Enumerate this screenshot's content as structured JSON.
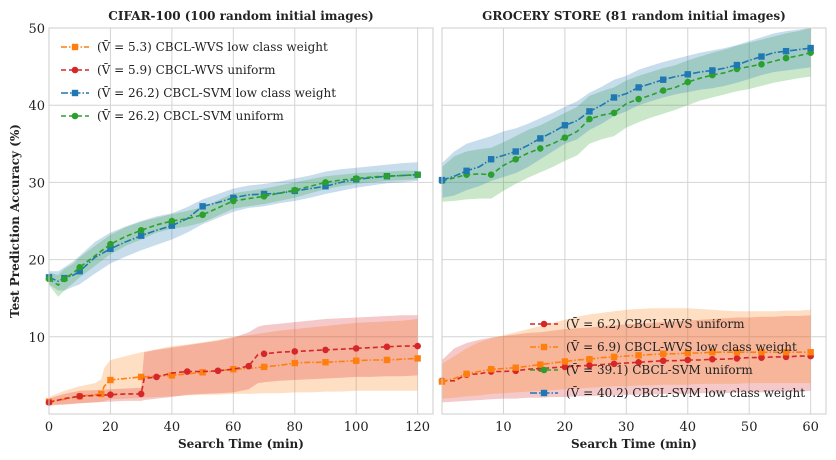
{
  "chart_data": [
    {
      "type": "line",
      "title": "CIFAR-100 (100 random initial images)",
      "xlabel": "Search Time (min)",
      "ylabel": "Test Prediction Accuracy (%)",
      "xlim": [
        0,
        125
      ],
      "ylim": [
        0,
        50
      ],
      "xticks": [
        0,
        20,
        40,
        60,
        80,
        100,
        120
      ],
      "yticks": [
        10,
        20,
        30,
        40,
        50
      ],
      "grid": true,
      "legend_position": "top-left",
      "series": [
        {
          "name": "(V̄ =  5.3) CBCL-WVS low class weight",
          "color": "#ff7f0e",
          "marker": "square",
          "dash": "6,2,1.5,2",
          "x": [
            0,
            5,
            10,
            15,
            17,
            18,
            20,
            25,
            30,
            35,
            40,
            45,
            50,
            55,
            60,
            65,
            70,
            75,
            80,
            85,
            90,
            95,
            100,
            105,
            110,
            115,
            120
          ],
          "y": [
            1.6,
            1.9,
            2.3,
            2.5,
            2.6,
            3.6,
            4.4,
            4.6,
            4.8,
            4.9,
            5.0,
            5.2,
            5.4,
            5.6,
            5.8,
            5.9,
            6.1,
            6.3,
            6.6,
            6.7,
            6.7,
            6.8,
            6.9,
            7.0,
            7.0,
            7.1,
            7.2
          ],
          "band_upper": [
            2.2,
            3.0,
            3.6,
            4.0,
            4.5,
            6.0,
            7.0,
            7.5,
            8.0,
            8.4,
            8.8,
            9.0,
            9.3,
            9.6,
            10.0,
            10.2,
            10.5,
            10.8,
            11.0,
            11.2,
            11.4,
            11.6,
            11.8,
            11.9,
            12.0,
            12.1,
            12.3
          ],
          "band_lower": [
            1.2,
            1.3,
            1.4,
            1.5,
            1.6,
            1.7,
            1.9,
            2.0,
            2.1,
            2.2,
            2.3,
            2.4,
            2.5,
            2.5,
            2.6,
            2.6,
            2.7,
            2.7,
            2.8,
            2.8,
            2.9,
            2.9,
            3.0,
            3.0,
            3.0,
            3.0,
            3.0
          ]
        },
        {
          "name": "(V̄ =  5.9) CBCL-WVS uniform",
          "color": "#d62728",
          "marker": "circle",
          "dash": "5,3",
          "x": [
            0,
            5,
            10,
            15,
            20,
            25,
            30,
            31,
            35,
            40,
            45,
            50,
            55,
            60,
            65,
            68,
            70,
            75,
            80,
            85,
            90,
            95,
            100,
            105,
            110,
            115,
            120
          ],
          "y": [
            1.5,
            2.0,
            2.3,
            2.4,
            2.5,
            2.6,
            2.6,
            4.6,
            4.8,
            5.3,
            5.5,
            5.5,
            5.6,
            5.8,
            6.2,
            7.7,
            7.8,
            8.0,
            8.1,
            8.2,
            8.3,
            8.4,
            8.5,
            8.6,
            8.7,
            8.8,
            8.8
          ],
          "band_upper": [
            2.0,
            2.6,
            3.0,
            3.1,
            3.2,
            3.3,
            3.4,
            8.0,
            8.3,
            8.6,
            8.9,
            9.2,
            9.5,
            9.9,
            10.6,
            11.3,
            11.5,
            11.7,
            11.9,
            12.1,
            12.3,
            12.4,
            12.5,
            12.6,
            12.7,
            12.8,
            12.8
          ],
          "band_lower": [
            1.1,
            1.2,
            1.4,
            1.5,
            1.6,
            1.7,
            1.7,
            1.8,
            2.0,
            2.2,
            2.5,
            2.6,
            2.7,
            2.8,
            3.2,
            4.0,
            4.1,
            4.3,
            4.4,
            4.5,
            4.6,
            4.7,
            4.8,
            4.8,
            4.9,
            4.9,
            5.0
          ]
        },
        {
          "name": "(V̄ =  26.2) CBCL-SVM low class weight",
          "color": "#1f77b4",
          "marker": "square",
          "dash": "7,2,1.5,2",
          "x": [
            0,
            3,
            5,
            8,
            10,
            15,
            20,
            25,
            30,
            35,
            40,
            45,
            50,
            55,
            60,
            65,
            70,
            75,
            80,
            85,
            90,
            95,
            100,
            105,
            110,
            115,
            120
          ],
          "y": [
            17.7,
            17.2,
            17.6,
            18.0,
            18.5,
            20.3,
            21.4,
            22.3,
            23.1,
            23.8,
            24.4,
            25.3,
            26.9,
            27.4,
            28.0,
            28.4,
            28.5,
            28.6,
            28.9,
            29.2,
            29.5,
            30.0,
            30.4,
            30.6,
            30.8,
            30.9,
            31.0
          ],
          "band_upper": [
            18.5,
            18.5,
            19.0,
            19.8,
            20.5,
            22.3,
            23.5,
            24.3,
            25.0,
            25.6,
            26.0,
            26.8,
            27.8,
            28.5,
            29.2,
            29.6,
            29.8,
            30.1,
            30.5,
            30.9,
            31.4,
            31.7,
            31.9,
            32.1,
            32.3,
            32.5,
            32.6
          ],
          "band_lower": [
            16.8,
            16.0,
            16.0,
            16.5,
            16.8,
            18.2,
            19.5,
            20.4,
            21.2,
            21.9,
            22.6,
            23.5,
            24.6,
            25.4,
            26.2,
            26.7,
            26.9,
            27.3,
            27.6,
            28.0,
            28.5,
            28.9,
            29.3,
            29.6,
            29.9,
            30.0,
            30.2
          ]
        },
        {
          "name": "(V̄ =  26.2) CBCL-SVM uniform",
          "color": "#2ca02c",
          "marker": "circle",
          "dash": "5,3",
          "x": [
            0,
            3,
            5,
            8,
            10,
            15,
            20,
            25,
            30,
            35,
            40,
            45,
            50,
            55,
            60,
            65,
            70,
            75,
            80,
            85,
            90,
            95,
            100,
            105,
            110,
            115,
            120
          ],
          "y": [
            17.5,
            16.7,
            17.5,
            18.3,
            19.0,
            20.5,
            22.0,
            23.0,
            23.8,
            24.5,
            25.0,
            25.3,
            25.8,
            26.7,
            27.6,
            27.9,
            28.2,
            28.6,
            29.0,
            29.5,
            30.0,
            30.3,
            30.5,
            30.7,
            30.8,
            30.9,
            31.0
          ],
          "band_upper": [
            18.3,
            18.0,
            18.8,
            19.5,
            20.3,
            21.8,
            23.2,
            24.2,
            24.9,
            25.4,
            25.9,
            26.3,
            26.8,
            27.7,
            28.6,
            28.9,
            29.2,
            29.6,
            30.0,
            30.4,
            30.8,
            31.0,
            31.2,
            31.3,
            31.4,
            31.5,
            31.5
          ],
          "band_lower": [
            16.7,
            15.2,
            16.0,
            17.0,
            17.7,
            19.2,
            20.7,
            21.8,
            22.6,
            23.5,
            24.0,
            24.3,
            24.8,
            25.7,
            26.6,
            26.9,
            27.2,
            27.6,
            28.0,
            28.6,
            29.1,
            29.5,
            29.8,
            30.0,
            30.2,
            30.3,
            30.4
          ]
        }
      ]
    },
    {
      "type": "line",
      "title": "GROCERY STORE (81 random initial images)",
      "xlabel": "Search Time (min)",
      "ylabel": "",
      "xlim": [
        0,
        62.5
      ],
      "ylim": [
        0,
        50
      ],
      "xticks": [
        10,
        20,
        30,
        40,
        50,
        60
      ],
      "yticks": [
        10,
        20,
        30,
        40,
        50
      ],
      "grid": true,
      "legend_position": "bottom-right",
      "series": [
        {
          "name": "(V̄ =  6.2) CBCL-WVS uniform",
          "color": "#d62728",
          "marker": "circle",
          "dash": "5,3",
          "x": [
            0,
            2,
            4,
            6,
            8,
            10,
            12,
            14,
            16,
            18,
            20,
            22,
            24,
            26,
            28,
            30,
            32,
            34,
            36,
            38,
            40,
            42,
            44,
            46,
            48,
            50,
            52,
            54,
            56,
            58,
            60
          ],
          "y": [
            4.3,
            4.3,
            5.1,
            5.2,
            5.5,
            5.5,
            5.6,
            5.8,
            5.9,
            6.0,
            6.1,
            6.2,
            6.3,
            6.4,
            6.5,
            6.6,
            6.7,
            6.8,
            6.9,
            6.9,
            7.0,
            7.0,
            7.1,
            7.1,
            7.2,
            7.3,
            7.3,
            7.4,
            7.4,
            7.5,
            7.5
          ],
          "band_upper": [
            7.0,
            8.5,
            9.2,
            9.6,
            9.9,
            10.1,
            10.3,
            10.5,
            10.6,
            10.8,
            11.0,
            11.1,
            11.2,
            11.4,
            11.5,
            11.6,
            11.7,
            11.8,
            11.9,
            12.0,
            12.1,
            12.2,
            12.3,
            12.4,
            12.5,
            12.5,
            12.6,
            12.6,
            12.7,
            12.7,
            12.8
          ],
          "band_lower": [
            1.5,
            1.6,
            1.7,
            1.8,
            1.9,
            2.0,
            2.0,
            2.1,
            2.1,
            2.2,
            2.2,
            2.3,
            2.3,
            2.4,
            2.4,
            2.5,
            2.5,
            2.5,
            2.6,
            2.6,
            2.6,
            2.7,
            2.7,
            2.7,
            2.8,
            2.8,
            2.8,
            2.9,
            2.9,
            2.9,
            3.0
          ]
        },
        {
          "name": "(V̄ =  6.9) CBCL-WVS low class weight",
          "color": "#ff7f0e",
          "marker": "square",
          "dash": "6,2,1.5,2",
          "x": [
            0,
            2,
            4,
            6,
            8,
            10,
            12,
            14,
            16,
            18,
            20,
            22,
            24,
            26,
            28,
            30,
            32,
            34,
            36,
            38,
            40,
            42,
            44,
            46,
            48,
            50,
            52,
            54,
            56,
            58,
            60
          ],
          "y": [
            4.2,
            4.6,
            5.2,
            5.5,
            5.8,
            5.9,
            6.0,
            6.2,
            6.4,
            6.6,
            6.8,
            7.0,
            7.1,
            7.3,
            7.4,
            7.5,
            7.6,
            7.7,
            7.8,
            7.8,
            7.9,
            7.9,
            8.0,
            8.0,
            8.0,
            8.0,
            8.0,
            8.0,
            8.0,
            8.0,
            8.0
          ],
          "band_upper": [
            6.5,
            7.5,
            8.5,
            9.3,
            9.8,
            10.2,
            10.6,
            11.0,
            11.4,
            11.8,
            12.2,
            12.6,
            12.9,
            13.1,
            13.3,
            13.5,
            13.6,
            13.7,
            13.7,
            13.7,
            13.7,
            13.6,
            13.5,
            13.4,
            13.3,
            13.3,
            13.3,
            13.3,
            13.4,
            13.4,
            13.5
          ],
          "band_lower": [
            2.0,
            2.1,
            2.3,
            2.4,
            2.6,
            2.7,
            2.8,
            2.9,
            3.0,
            3.1,
            3.2,
            3.3,
            3.4,
            3.5,
            3.6,
            3.6,
            3.7,
            3.7,
            3.8,
            3.8,
            3.8,
            3.9,
            3.9,
            3.9,
            3.9,
            4.0,
            4.0,
            4.0,
            4.0,
            4.0,
            4.0
          ]
        },
        {
          "name": "(V̄ =  39.1) CBCL-SVM uniform",
          "color": "#2ca02c",
          "marker": "circle",
          "dash": "5,3",
          "x": [
            0,
            2,
            4,
            6,
            8,
            10,
            12,
            14,
            16,
            18,
            20,
            22,
            24,
            26,
            28,
            30,
            32,
            34,
            36,
            38,
            40,
            42,
            44,
            46,
            48,
            50,
            52,
            54,
            56,
            58,
            60
          ],
          "y": [
            30.2,
            30.6,
            31.0,
            31.1,
            31.0,
            32.2,
            33.0,
            33.8,
            34.4,
            35.0,
            35.8,
            36.6,
            38.2,
            38.7,
            39.0,
            40.2,
            40.8,
            41.3,
            41.9,
            42.3,
            43.0,
            43.5,
            43.9,
            44.2,
            44.7,
            45.0,
            45.3,
            45.7,
            46.1,
            46.4,
            46.8
          ],
          "band_upper": [
            32.0,
            33.4,
            34.0,
            34.3,
            34.5,
            35.2,
            36.0,
            36.8,
            37.4,
            38.2,
            39.0,
            39.8,
            41.2,
            41.8,
            42.3,
            43.2,
            43.8,
            44.3,
            44.8,
            45.2,
            45.8,
            46.3,
            46.8,
            47.2,
            47.7,
            48.1,
            48.5,
            48.9,
            49.3,
            49.6,
            50.0
          ],
          "band_lower": [
            27.5,
            27.6,
            27.8,
            27.9,
            27.9,
            28.9,
            29.8,
            30.6,
            31.3,
            32.0,
            32.8,
            33.5,
            35.0,
            35.6,
            36.0,
            37.1,
            37.8,
            38.4,
            38.9,
            39.4,
            40.0,
            40.6,
            41.0,
            41.4,
            41.8,
            42.1,
            42.5,
            42.9,
            43.2,
            43.5,
            43.7
          ]
        },
        {
          "name": "(V̄ =  40.2) CBCL-SVM low class weight",
          "color": "#1f77b4",
          "marker": "square",
          "dash": "7,2,1.5,2",
          "x": [
            0,
            2,
            4,
            6,
            8,
            10,
            12,
            14,
            16,
            18,
            20,
            22,
            24,
            26,
            28,
            30,
            32,
            34,
            36,
            38,
            40,
            42,
            44,
            46,
            48,
            50,
            52,
            54,
            56,
            58,
            60
          ],
          "y": [
            30.3,
            30.8,
            31.5,
            32.0,
            33.0,
            33.5,
            34.0,
            34.8,
            35.7,
            36.5,
            37.4,
            38.0,
            39.2,
            40.0,
            41.0,
            41.5,
            42.3,
            42.8,
            43.3,
            43.7,
            44.0,
            44.3,
            44.5,
            44.8,
            45.2,
            45.8,
            46.3,
            46.8,
            47.0,
            47.2,
            47.4
          ],
          "band_upper": [
            32.5,
            34.0,
            35.0,
            35.5,
            36.0,
            36.6,
            37.0,
            37.6,
            38.3,
            39.0,
            39.8,
            40.5,
            41.6,
            42.4,
            43.3,
            43.8,
            44.6,
            45.1,
            45.6,
            46.0,
            46.4,
            46.8,
            47.1,
            47.4,
            47.8,
            48.3,
            48.8,
            49.3,
            49.6,
            49.8,
            50.0
          ],
          "band_lower": [
            28.0,
            28.3,
            29.0,
            29.5,
            30.2,
            30.7,
            31.2,
            32.0,
            33.0,
            34.0,
            35.0,
            35.6,
            36.8,
            37.6,
            38.6,
            39.2,
            40.0,
            40.5,
            41.0,
            41.4,
            41.7,
            42.0,
            42.2,
            42.5,
            42.9,
            43.4,
            43.9,
            44.3,
            44.5,
            44.7,
            44.9
          ]
        }
      ]
    }
  ]
}
